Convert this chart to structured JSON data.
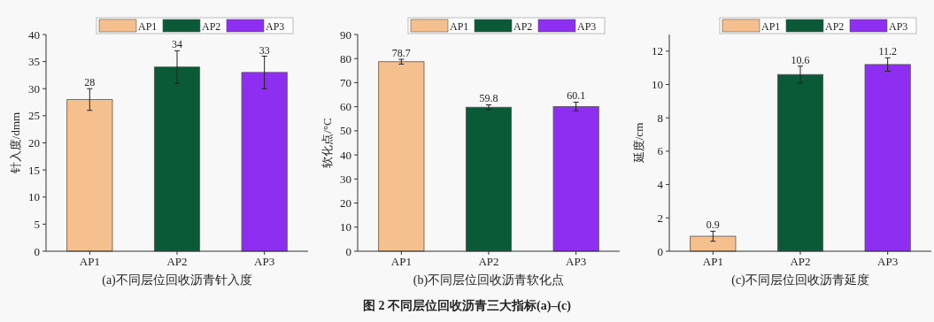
{
  "chart_data": [
    {
      "type": "bar",
      "categories": [
        "AP1",
        "AP2",
        "AP3"
      ],
      "series": [
        {
          "name": "AP1",
          "color": "#f5c08e",
          "values": [
            28,
            null,
            null
          ],
          "errors": [
            2,
            null,
            null
          ]
        },
        {
          "name": "AP2",
          "color": "#0a5a38",
          "values": [
            null,
            34,
            null
          ],
          "errors": [
            null,
            3,
            null
          ]
        },
        {
          "name": "AP3",
          "color": "#8e2ef0",
          "values": [
            null,
            null,
            33
          ],
          "errors": [
            null,
            null,
            3
          ]
        }
      ],
      "ylabel": "针入度/dmm",
      "xlabel": "(a)不同层位回收沥青针入度",
      "ylim": [
        0,
        40
      ],
      "yticks": [
        0,
        5,
        10,
        15,
        20,
        25,
        30,
        35,
        40
      ],
      "data_labels": true,
      "legend": "top",
      "annotations": [
        "图 2  不同层位回收沥青三大指标(a)–(c)"
      ]
    },
    {
      "type": "bar",
      "categories": [
        "AP1",
        "AP2",
        "AP3"
      ],
      "series": [
        {
          "name": "AP1",
          "color": "#f5c08e",
          "values": [
            78.7,
            null,
            null
          ],
          "errors": [
            1,
            null,
            null
          ]
        },
        {
          "name": "AP2",
          "color": "#0a5a38",
          "values": [
            null,
            59.8,
            null
          ],
          "errors": [
            null,
            1,
            null
          ]
        },
        {
          "name": "AP3",
          "color": "#8e2ef0",
          "values": [
            null,
            null,
            60.1
          ],
          "errors": [
            null,
            null,
            1.8
          ]
        }
      ],
      "ylabel": "软化点/°C",
      "xlabel": "(b)不同层位回收沥青软化点",
      "ylim": [
        0,
        90
      ],
      "yticks": [
        0,
        10,
        20,
        30,
        40,
        50,
        60,
        70,
        80,
        90
      ],
      "data_labels": true,
      "legend": "top"
    },
    {
      "type": "bar",
      "categories": [
        "AP1",
        "AP2",
        "AP3"
      ],
      "series": [
        {
          "name": "AP1",
          "color": "#f5c08e",
          "values": [
            0.9,
            null,
            null
          ],
          "errors": [
            0.3,
            null,
            null
          ]
        },
        {
          "name": "AP2",
          "color": "#0a5a38",
          "values": [
            null,
            10.6,
            null
          ],
          "errors": [
            null,
            0.5,
            null
          ]
        },
        {
          "name": "AP3",
          "color": "#8e2ef0",
          "values": [
            null,
            null,
            11.2
          ],
          "errors": [
            null,
            null,
            0.4
          ]
        }
      ],
      "ylabel": "延度/cm",
      "xlabel": "(c)不同层位回收沥青延度",
      "ylim": [
        0,
        13
      ],
      "yticks": [
        0,
        2,
        4,
        6,
        8,
        10,
        12
      ],
      "data_labels": true,
      "legend": "top"
    }
  ]
}
